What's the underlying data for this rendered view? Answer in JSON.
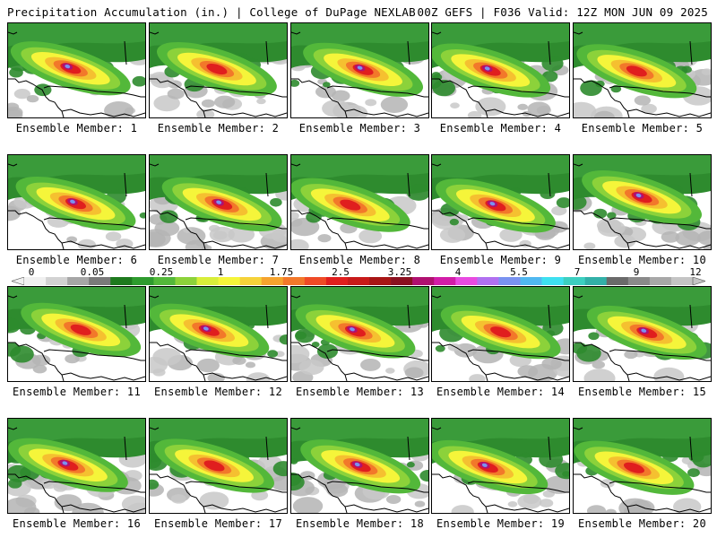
{
  "header": {
    "left": "Precipitation Accumulation (in.) | College of DuPage NEXLAB",
    "right": "00Z GEFS | F036 Valid: 12Z MON JUN 09 2025"
  },
  "caption_prefix": "Ensemble Member:",
  "members": [
    {
      "label": "Ensemble Member: 1"
    },
    {
      "label": "Ensemble Member: 2"
    },
    {
      "label": "Ensemble Member: 3"
    },
    {
      "label": "Ensemble Member: 4"
    },
    {
      "label": "Ensemble Member: 5"
    },
    {
      "label": "Ensemble Member: 6"
    },
    {
      "label": "Ensemble Member: 7"
    },
    {
      "label": "Ensemble Member: 8"
    },
    {
      "label": "Ensemble Member: 9"
    },
    {
      "label": "Ensemble Member: 10"
    },
    {
      "label": "Ensemble Member: 11"
    },
    {
      "label": "Ensemble Member: 12"
    },
    {
      "label": "Ensemble Member: 13"
    },
    {
      "label": "Ensemble Member: 14"
    },
    {
      "label": "Ensemble Member: 15"
    },
    {
      "label": "Ensemble Member: 16"
    },
    {
      "label": "Ensemble Member: 17"
    },
    {
      "label": "Ensemble Member: 18"
    },
    {
      "label": "Ensemble Member: 19"
    },
    {
      "label": "Ensemble Member: 20"
    }
  ],
  "colorbar": {
    "tick_labels": [
      "0",
      "0.05",
      "0.25",
      "1",
      "1.75",
      "2.5",
      "3.25",
      "4",
      "5.5",
      "7",
      "9",
      "12"
    ],
    "colors": [
      "#f0f0f0",
      "#d2d2d2",
      "#a6a6a6",
      "#7a7a7a",
      "#1e7a1e",
      "#2e9b2e",
      "#53b83a",
      "#8cd23a",
      "#d8ee3a",
      "#f5f53a",
      "#f5d23a",
      "#f5a32e",
      "#f2782a",
      "#ef4a26",
      "#e01e1e",
      "#c81a1a",
      "#a81515",
      "#8a1020",
      "#b01070",
      "#d21ca8",
      "#e84ae0",
      "#b070f0",
      "#7a92f0",
      "#50b8f0",
      "#3ee0f0",
      "#3ccfc0",
      "#32b0a8",
      "#6a6a6a",
      "#8a8a8a",
      "#a8a8a8",
      "#c4c4c4"
    ]
  }
}
